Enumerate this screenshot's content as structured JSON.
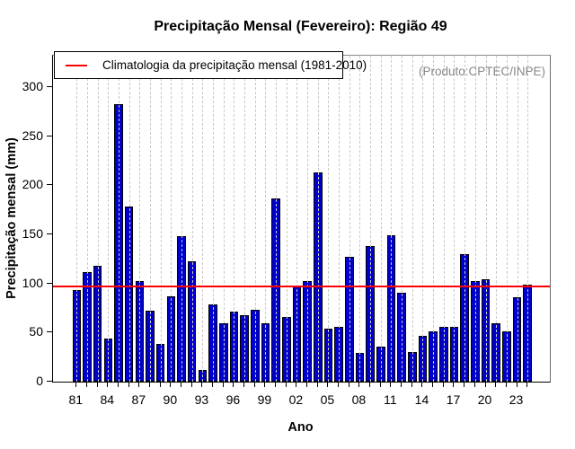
{
  "title": "Precipitação Mensal (Fevereiro): Região 49",
  "legend": {
    "label": "Climatologia da precipitação mensal (1981-2010)",
    "line_color": "#ff0000"
  },
  "annotation": "(Produto:CPTEC/INPE)",
  "chart_data": {
    "type": "bar",
    "title": "Precipitação Mensal (Fevereiro): Região 49",
    "xlabel": "Ano",
    "ylabel": "Precipitação mensal (mm)",
    "ylim": [
      0,
      300
    ],
    "yticks": [
      0,
      50,
      100,
      150,
      200,
      250,
      300
    ],
    "xtick_labels": [
      "81",
      "84",
      "87",
      "90",
      "93",
      "96",
      "99",
      "02",
      "05",
      "08",
      "11",
      "14",
      "17",
      "20",
      "23"
    ],
    "grid": "vertical-dashed",
    "legend_position": "top-left",
    "bar_color": "#0000cd",
    "categories": [
      "1981",
      "1982",
      "1983",
      "1984",
      "1985",
      "1986",
      "1987",
      "1988",
      "1989",
      "1990",
      "1991",
      "1992",
      "1993",
      "1994",
      "1995",
      "1996",
      "1997",
      "1998",
      "1999",
      "2000",
      "2001",
      "2002",
      "2003",
      "2004",
      "2005",
      "2006",
      "2007",
      "2008",
      "2009",
      "2010",
      "2011",
      "2012",
      "2013",
      "2014",
      "2015",
      "2016",
      "2017",
      "2018",
      "2019",
      "2020",
      "2021",
      "2022",
      "2023",
      "2024"
    ],
    "values": [
      93,
      112,
      118,
      44,
      283,
      178,
      102,
      72,
      38,
      87,
      148,
      123,
      12,
      79,
      59,
      71,
      68,
      73,
      59,
      187,
      66,
      98,
      102,
      213,
      54,
      56,
      127,
      29,
      138,
      36,
      149,
      91,
      30,
      47,
      51,
      56,
      56,
      130,
      102,
      104,
      59,
      51,
      86,
      99
    ],
    "climatology_line": {
      "value": 97,
      "color": "#ff0000",
      "label": "Climatologia da precipitação mensal (1981-2010)"
    }
  }
}
